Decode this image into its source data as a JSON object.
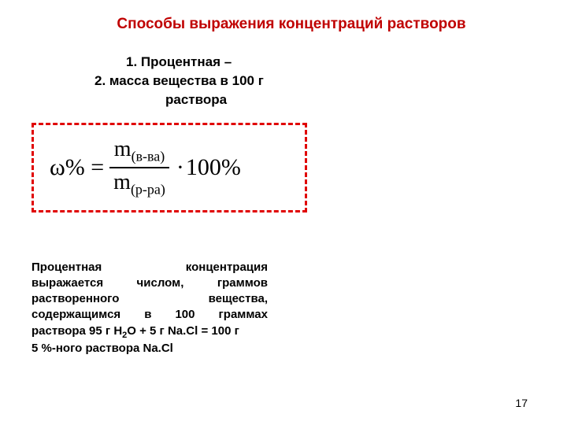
{
  "title": "Способы выражения концентраций растворов",
  "list": {
    "item1": "1.  Процентная –",
    "item2_line1": "2.  масса вещества в 100 г",
    "item2_line2": "раствора"
  },
  "formula": {
    "lhs": "ω% =",
    "num_main": "m",
    "num_sub": "(в-ва)",
    "den_main": "m",
    "den_sub": "(р-ра)",
    "dot": "·",
    "tail": "100%",
    "border_color": "#e00000"
  },
  "description": {
    "l1": "Процентная концентрация",
    "l2": "выражается числом, граммов",
    "l3": "растворенного вещества,",
    "l4": "содержащимся в 100 граммах",
    "l5_a": "раствора 95 г H",
    "l5_sub1": "2",
    "l5_b": "O + 5 г Na.Cl = 100 г",
    "l6": "5 %-ного раствора Na.Cl"
  },
  "page_number": "17",
  "colors": {
    "title": "#c00000",
    "text": "#000000",
    "background": "#ffffff"
  }
}
